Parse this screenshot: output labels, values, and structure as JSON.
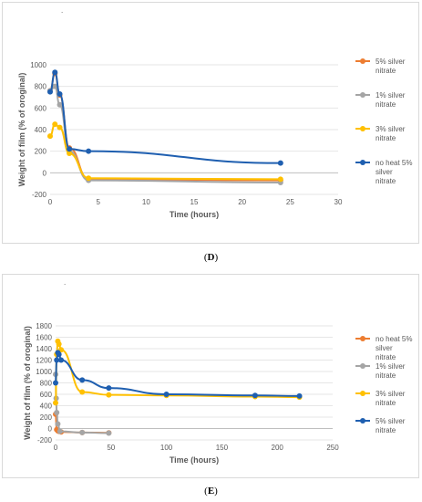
{
  "charts": {
    "D": {
      "caption_open": "(",
      "caption_letter": "D",
      "caption_close": ")",
      "top_mark": ".",
      "xlabel": "Time (hours)",
      "ylabel": "Weight of film (% of oroginal)"
    },
    "E": {
      "caption_open": "(",
      "caption_letter": "E",
      "caption_close": ")",
      "top_mark": ".",
      "xlabel": "Time (hours)",
      "ylabel": "Weight of film (% of oroginal)"
    }
  },
  "chart_data": [
    {
      "type": "scatter",
      "title": "",
      "xlabel": "Time (hours)",
      "ylabel": "Weight of film (% of oroginal)",
      "xlim": [
        0,
        30
      ],
      "ylim": [
        -200,
        1000
      ],
      "xticks": [
        0,
        5,
        10,
        15,
        20,
        25,
        30
      ],
      "yticks": [
        -200,
        0,
        200,
        400,
        600,
        800,
        1000
      ],
      "grid": "horizontal",
      "legend": "right",
      "series": [
        {
          "name": "5% silver nitrate",
          "color": "#ED7D31",
          "x": [
            0,
            0.5,
            1,
            2,
            4,
            24
          ],
          "y": [
            760,
            920,
            720,
            230,
            -60,
            -70
          ]
        },
        {
          "name": "1% silver nitrate",
          "color": "#A5A5A5",
          "x": [
            0,
            0.5,
            1,
            2,
            4,
            24
          ],
          "y": [
            760,
            800,
            630,
            200,
            -70,
            -90
          ]
        },
        {
          "name": "3% silver nitrate",
          "color": "#FFC000",
          "x": [
            0,
            0.5,
            1,
            2,
            4,
            24
          ],
          "y": [
            340,
            450,
            420,
            180,
            -50,
            -60
          ]
        },
        {
          "name": "no heat 5% silver nitrate",
          "color": "#1F5FB0",
          "x": [
            0,
            0.5,
            1,
            2,
            4,
            24
          ],
          "y": [
            750,
            930,
            730,
            220,
            200,
            90
          ]
        }
      ]
    },
    {
      "type": "scatter",
      "title": "",
      "xlabel": "Time (hours)",
      "ylabel": "Weight of film (% of oroginal)",
      "xlim": [
        0,
        250
      ],
      "ylim": [
        -200,
        1800
      ],
      "xticks": [
        0,
        50,
        100,
        150,
        200,
        250
      ],
      "yticks": [
        -200,
        0,
        200,
        400,
        600,
        800,
        1000,
        1200,
        1400,
        1600,
        1800
      ],
      "grid": "horizontal",
      "legend": "right",
      "series": [
        {
          "name": "no heat 5% silver nitrate",
          "color": "#ED7D31",
          "x": [
            0,
            1,
            2,
            3,
            5,
            24,
            48
          ],
          "y": [
            250,
            -20,
            -40,
            -50,
            -60,
            -70,
            -75
          ]
        },
        {
          "name": "1% silver nitrate",
          "color": "#A5A5A5",
          "x": [
            0,
            0.5,
            1,
            2,
            4,
            24,
            48
          ],
          "y": [
            950,
            530,
            280,
            80,
            -50,
            -70,
            -80
          ]
        },
        {
          "name": "3% silver nitrate",
          "color": "#FFC000",
          "x": [
            0,
            1,
            2,
            3,
            5,
            24,
            48,
            100,
            180,
            220
          ],
          "y": [
            450,
            1300,
            1530,
            1480,
            1380,
            640,
            590,
            580,
            560,
            550
          ]
        },
        {
          "name": "5% silver nitrate",
          "color": "#1F5FB0",
          "x": [
            0,
            1,
            2,
            3,
            5,
            24,
            48,
            100,
            180,
            220
          ],
          "y": [
            800,
            1200,
            1330,
            1300,
            1200,
            850,
            710,
            600,
            580,
            570
          ]
        }
      ]
    }
  ]
}
